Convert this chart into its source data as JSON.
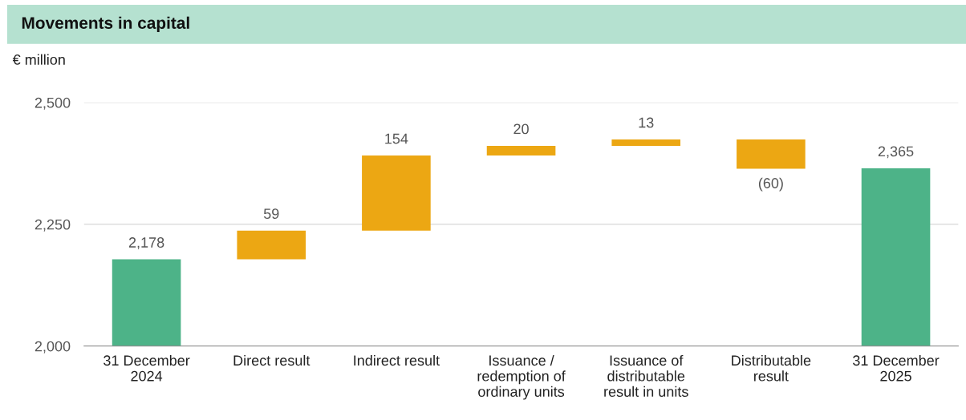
{
  "chart_data": {
    "type": "bar",
    "title": "Movements in capital",
    "ylabel": "€ million",
    "categories": [
      "31 December\n2024",
      "Direct result",
      "Indirect result",
      "Issuance /\nredemption of\nordinary units",
      "Issuance of\ndistributable\nresult in units",
      "Distributable\nresult",
      "31 December\n2025"
    ],
    "values": [
      2178,
      59,
      154,
      20,
      13,
      -60,
      2365
    ],
    "base": [
      0,
      2178,
      2237,
      2391,
      2411,
      2424,
      0
    ],
    "colors": [
      "#4db388",
      "#eca713",
      "#eca713",
      "#eca713",
      "#eca713",
      "#eca713",
      "#4db388"
    ],
    "value_labels": [
      "2,178",
      "59",
      "154",
      "20",
      "13",
      "(60)",
      "2,365"
    ],
    "ylim": [
      2000,
      2500
    ],
    "yticks": [
      {
        "value": 2000,
        "label": "2,000"
      },
      {
        "value": 2250,
        "label": "2,250"
      },
      {
        "value": 2500,
        "label": "2,500"
      }
    ],
    "grid": "y",
    "legend": false
  }
}
